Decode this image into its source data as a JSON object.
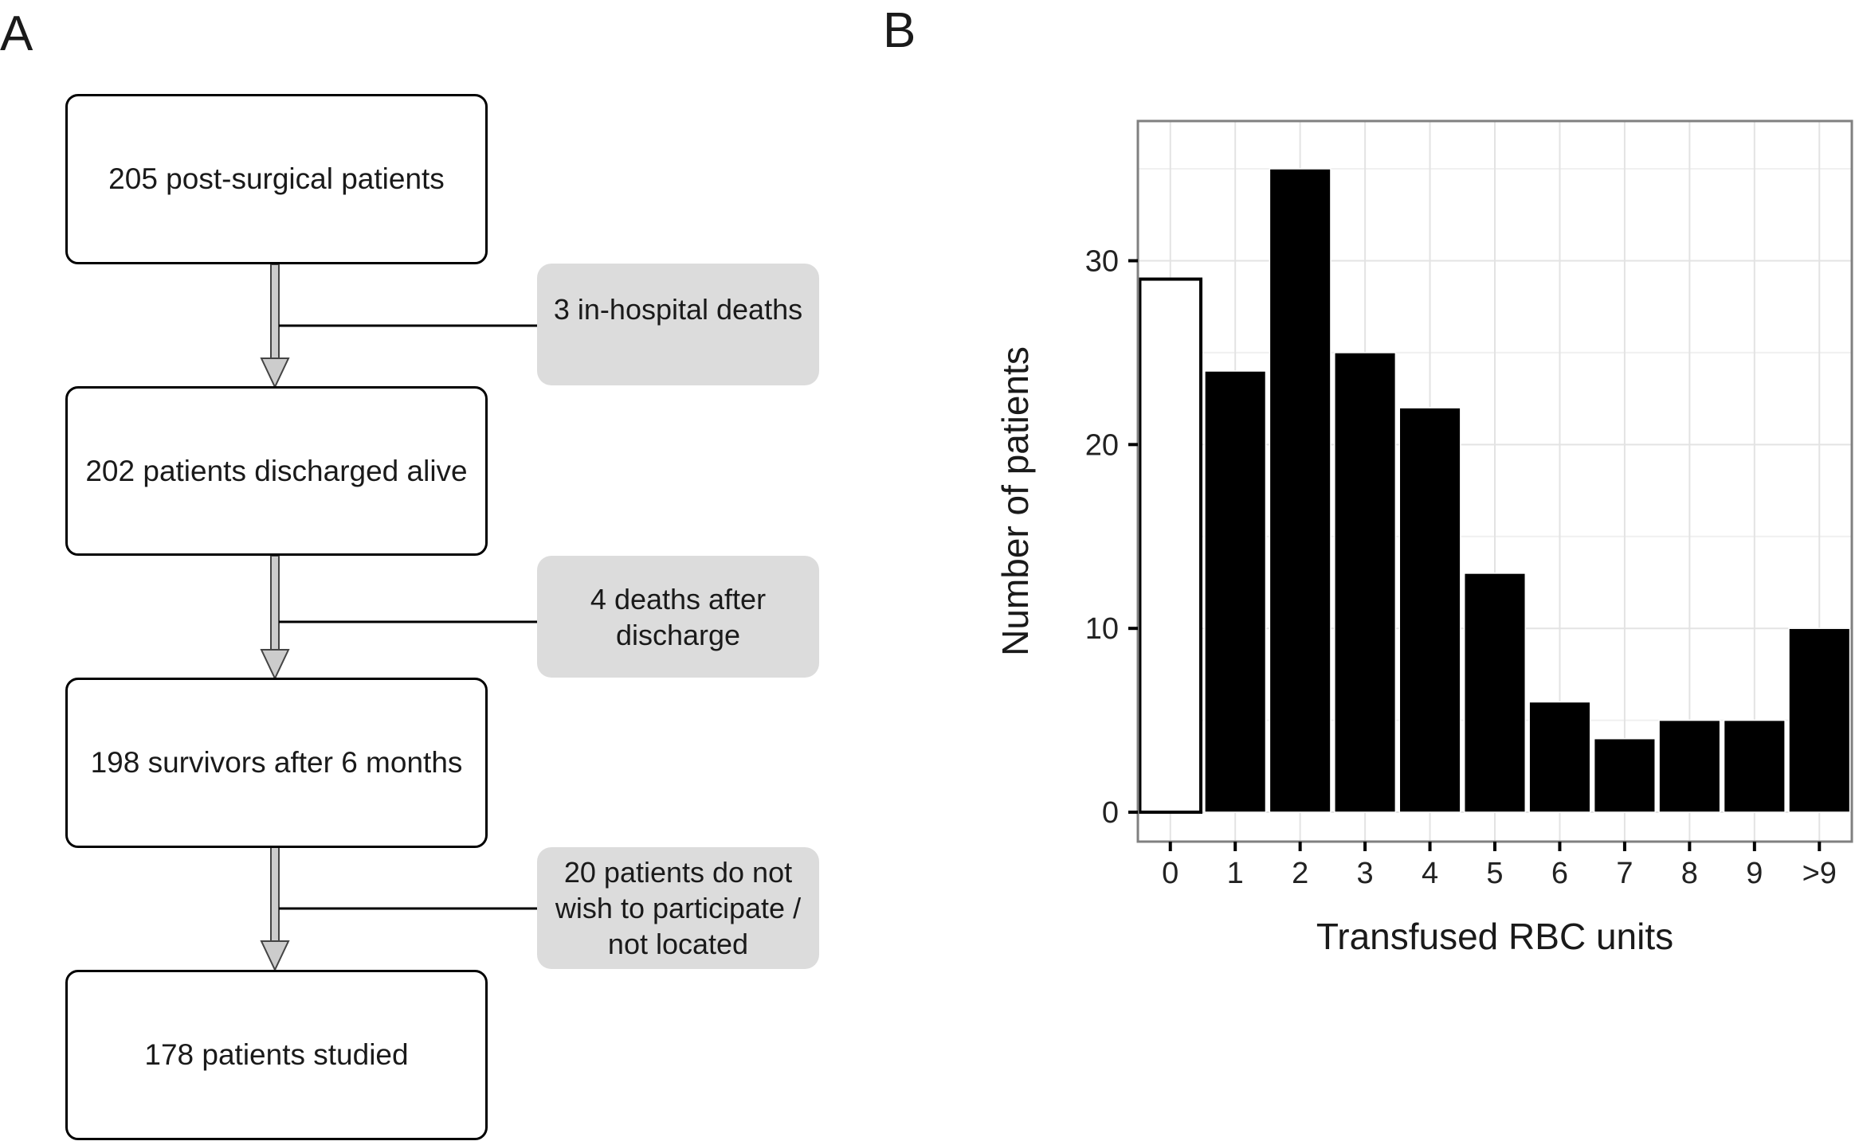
{
  "panels": {
    "a_label": "A",
    "b_label": "B"
  },
  "flowchart": {
    "boxes": [
      {
        "text": "205 post-surgical patients"
      },
      {
        "text": "202 patients discharged alive"
      },
      {
        "text": "198 survivors after 6 months"
      },
      {
        "text": "178 patients studied"
      }
    ],
    "exclusions": [
      {
        "lines": [
          "3 in-hospital deaths"
        ]
      },
      {
        "lines": [
          "4 deaths after",
          "discharge"
        ]
      },
      {
        "lines": [
          "20 patients do not",
          "wish to participate /",
          "not located"
        ]
      }
    ],
    "colors": {
      "exclusion_fill": "#dcdcdc",
      "arrow_fill": "#cccccc"
    }
  },
  "chart_data": {
    "type": "bar",
    "title": "",
    "xlabel": "Transfused RBC units",
    "ylabel": "Number of patients",
    "categories": [
      "0",
      "1",
      "2",
      "3",
      "4",
      "5",
      "6",
      "7",
      "8",
      "9",
      ">9"
    ],
    "values": [
      29,
      24,
      35,
      25,
      22,
      13,
      6,
      4,
      5,
      5,
      10
    ],
    "bar_styles": [
      "outline",
      "filled",
      "filled",
      "filled",
      "filled",
      "filled",
      "filled",
      "filled",
      "filled",
      "filled",
      "filled"
    ],
    "ylim": [
      -1.6,
      37.6
    ],
    "yticks": [
      0,
      10,
      20,
      30
    ],
    "grid": true,
    "legend": "none",
    "colors": {
      "bar_fill": "#000000",
      "outline_fill": "#ffffff",
      "grid": "#e3e3e3",
      "frame": "#808080"
    }
  }
}
